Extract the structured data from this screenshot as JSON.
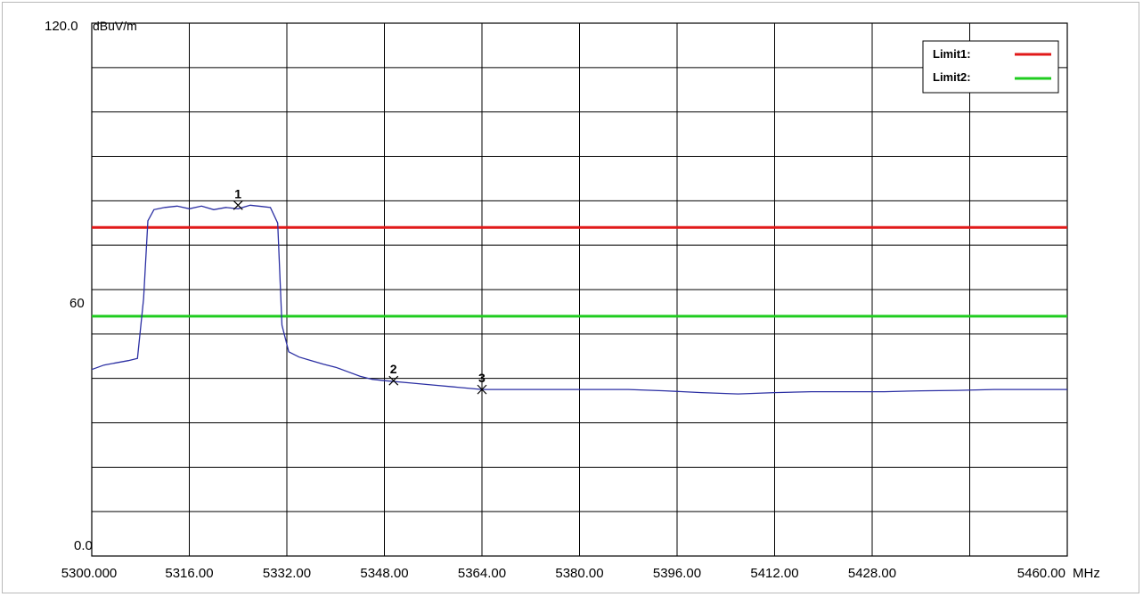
{
  "chart_data": {
    "type": "line",
    "title": "",
    "xlabel": "",
    "ylabel": "",
    "y_unit": "dBuV/m",
    "x_unit": "MHz",
    "xlim": [
      5300,
      5460
    ],
    "ylim": [
      0,
      120
    ],
    "grid": true,
    "x_tick_labels": [
      "5300.000",
      "5316.00",
      "5332.00",
      "5348.00",
      "5364.00",
      "5380.00",
      "5396.00",
      "5412.00",
      "5428.00",
      "",
      "5460.00"
    ],
    "y_tick_labels": {
      "top": "120.0",
      "mid": "60",
      "bottom": "0.0"
    },
    "y_tick_values": {
      "top": 120,
      "mid": 60,
      "bottom": 0
    },
    "legend": {
      "position": "top-right",
      "items": [
        {
          "label": "Limit1:",
          "color": "#e11919"
        },
        {
          "label": "Limit2:",
          "color": "#1fcc1f"
        }
      ]
    },
    "limits": [
      {
        "name": "Limit1:",
        "value": 74,
        "color": "#e11919"
      },
      {
        "name": "Limit2:",
        "value": 54,
        "color": "#1fcc1f"
      }
    ],
    "series": [
      {
        "color": "#2b2fa3",
        "x": [
          5300,
          5302,
          5304,
          5306,
          5307.5,
          5308.5,
          5309.2,
          5310.2,
          5312,
          5314,
          5316,
          5318,
          5320,
          5322,
          5324,
          5326,
          5328,
          5329.3,
          5330.5,
          5331.2,
          5332.3,
          5334,
          5336,
          5338,
          5340,
          5342,
          5344,
          5346,
          5348,
          5352,
          5356,
          5360,
          5364,
          5370,
          5376,
          5382,
          5388,
          5394,
          5400,
          5406,
          5412,
          5418,
          5424,
          5430,
          5436,
          5442,
          5448,
          5454,
          5460
        ],
        "y": [
          42.0,
          43.0,
          43.5,
          44.0,
          44.5,
          58,
          75.5,
          78.0,
          78.5,
          78.8,
          78.2,
          78.8,
          78.0,
          78.5,
          78.2,
          79.0,
          78.7,
          78.5,
          75.0,
          52,
          46.0,
          44.8,
          44.0,
          43.2,
          42.5,
          41.5,
          40.5,
          39.8,
          39.5,
          39.0,
          38.5,
          38.0,
          37.5,
          37.5,
          37.5,
          37.5,
          37.5,
          37.2,
          36.8,
          36.5,
          36.8,
          37.0,
          37.0,
          37.0,
          37.2,
          37.3,
          37.5,
          37.5,
          37.5
        ]
      }
    ],
    "markers": [
      {
        "label": "1",
        "x": 5324.0,
        "y": 79.0
      },
      {
        "label": "2",
        "x": 5349.5,
        "y": 39.5
      },
      {
        "label": "3",
        "x": 5364.0,
        "y": 37.5
      }
    ]
  }
}
